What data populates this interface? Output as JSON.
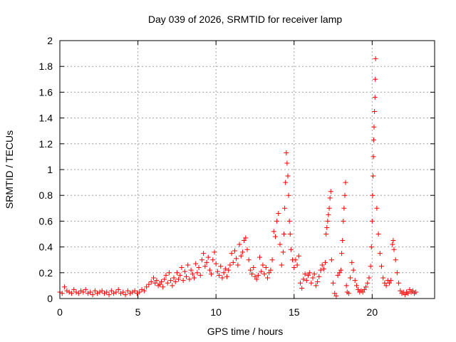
{
  "chart_data": {
    "type": "scatter",
    "title": "Day 039 of 2026, SRMTID for receiver lamp",
    "xlabel": "GPS time / hours",
    "ylabel": "SRMTID / TECUs",
    "xlim": [
      0,
      24
    ],
    "ylim": [
      0,
      2
    ],
    "xticks": [
      0,
      5,
      10,
      15,
      20
    ],
    "yticks": [
      0,
      0.2,
      0.4,
      0.6,
      0.8,
      1,
      1.2,
      1.4,
      1.6,
      1.8,
      2
    ],
    "xtick_labels": [
      "0",
      "5",
      "10",
      "15",
      "20"
    ],
    "ytick_labels": [
      "0",
      "0.2",
      "0.4",
      "0.6",
      "0.8",
      "1",
      "1.2",
      "1.4",
      "1.6",
      "1.8",
      "2"
    ],
    "grid": true,
    "marker": "plus",
    "color": "#ff0000",
    "series": [
      {
        "name": "SRMTID",
        "points": [
          [
            0.0,
            0.05
          ],
          [
            0.15,
            0.04
          ],
          [
            0.3,
            0.09
          ],
          [
            0.45,
            0.06
          ],
          [
            0.6,
            0.05
          ],
          [
            0.75,
            0.04
          ],
          [
            0.9,
            0.07
          ],
          [
            1.05,
            0.05
          ],
          [
            1.2,
            0.04
          ],
          [
            1.35,
            0.06
          ],
          [
            1.5,
            0.05
          ],
          [
            1.65,
            0.07
          ],
          [
            1.8,
            0.04
          ],
          [
            1.95,
            0.05
          ],
          [
            2.1,
            0.03
          ],
          [
            2.25,
            0.06
          ],
          [
            2.4,
            0.04
          ],
          [
            2.55,
            0.05
          ],
          [
            2.7,
            0.06
          ],
          [
            2.85,
            0.04
          ],
          [
            3.0,
            0.05
          ],
          [
            3.15,
            0.03
          ],
          [
            3.3,
            0.06
          ],
          [
            3.45,
            0.04
          ],
          [
            3.6,
            0.05
          ],
          [
            3.75,
            0.07
          ],
          [
            3.9,
            0.04
          ],
          [
            4.05,
            0.05
          ],
          [
            4.2,
            0.03
          ],
          [
            4.35,
            0.06
          ],
          [
            4.5,
            0.04
          ],
          [
            4.65,
            0.05
          ],
          [
            4.8,
            0.06
          ],
          [
            4.95,
            0.04
          ],
          [
            5.1,
            0.05
          ],
          [
            5.25,
            0.07
          ],
          [
            5.4,
            0.06
          ],
          [
            5.55,
            0.09
          ],
          [
            5.7,
            0.11
          ],
          [
            5.85,
            0.13
          ],
          [
            6.0,
            0.16
          ],
          [
            6.1,
            0.12
          ],
          [
            6.2,
            0.14
          ],
          [
            6.3,
            0.1
          ],
          [
            6.4,
            0.11
          ],
          [
            6.5,
            0.13
          ],
          [
            6.6,
            0.09
          ],
          [
            6.7,
            0.15
          ],
          [
            6.8,
            0.18
          ],
          [
            6.9,
            0.12
          ],
          [
            7.0,
            0.2
          ],
          [
            7.1,
            0.14
          ],
          [
            7.2,
            0.1
          ],
          [
            7.3,
            0.16
          ],
          [
            7.4,
            0.13
          ],
          [
            7.5,
            0.2
          ],
          [
            7.6,
            0.15
          ],
          [
            7.7,
            0.18
          ],
          [
            7.8,
            0.24
          ],
          [
            7.9,
            0.14
          ],
          [
            8.0,
            0.21
          ],
          [
            8.1,
            0.17
          ],
          [
            8.2,
            0.26
          ],
          [
            8.3,
            0.15
          ],
          [
            8.4,
            0.22
          ],
          [
            8.5,
            0.19
          ],
          [
            8.6,
            0.16
          ],
          [
            8.7,
            0.27
          ],
          [
            8.8,
            0.2
          ],
          [
            8.9,
            0.24
          ],
          [
            9.0,
            0.18
          ],
          [
            9.1,
            0.3
          ],
          [
            9.2,
            0.35
          ],
          [
            9.3,
            0.25
          ],
          [
            9.4,
            0.28
          ],
          [
            9.5,
            0.32
          ],
          [
            9.6,
            0.22
          ],
          [
            9.7,
            0.19
          ],
          [
            9.8,
            0.3
          ],
          [
            9.9,
            0.36
          ],
          [
            10.0,
            0.27
          ],
          [
            10.1,
            0.21
          ],
          [
            10.2,
            0.18
          ],
          [
            10.3,
            0.25
          ],
          [
            10.4,
            0.16
          ],
          [
            10.5,
            0.2
          ],
          [
            10.6,
            0.23
          ],
          [
            10.7,
            0.17
          ],
          [
            10.8,
            0.22
          ],
          [
            10.9,
            0.26
          ],
          [
            11.0,
            0.35
          ],
          [
            11.1,
            0.28
          ],
          [
            11.2,
            0.37
          ],
          [
            11.3,
            0.31
          ],
          [
            11.4,
            0.26
          ],
          [
            11.5,
            0.42
          ],
          [
            11.6,
            0.33
          ],
          [
            11.7,
            0.36
          ],
          [
            11.8,
            0.45
          ],
          [
            11.9,
            0.47
          ],
          [
            12.0,
            0.38
          ],
          [
            12.1,
            0.3
          ],
          [
            12.2,
            0.22
          ],
          [
            12.3,
            0.19
          ],
          [
            12.4,
            0.24
          ],
          [
            12.5,
            0.17
          ],
          [
            12.6,
            0.15
          ],
          [
            12.7,
            0.18
          ],
          [
            12.8,
            0.32
          ],
          [
            12.9,
            0.21
          ],
          [
            13.0,
            0.26
          ],
          [
            13.1,
            0.19
          ],
          [
            13.2,
            0.24
          ],
          [
            13.3,
            0.16
          ],
          [
            13.4,
            0.2
          ],
          [
            13.5,
            0.22
          ],
          [
            13.6,
            0.3
          ],
          [
            13.7,
            0.52
          ],
          [
            13.8,
            0.48
          ],
          [
            13.9,
            0.6
          ],
          [
            14.0,
            0.66
          ],
          [
            14.1,
            0.42
          ],
          [
            14.2,
            0.26
          ],
          [
            14.3,
            0.36
          ],
          [
            14.35,
            0.5
          ],
          [
            14.4,
            0.7
          ],
          [
            14.45,
            0.9
          ],
          [
            14.5,
            1.13
          ],
          [
            14.55,
            1.05
          ],
          [
            14.6,
            0.95
          ],
          [
            14.65,
            0.8
          ],
          [
            14.7,
            0.6
          ],
          [
            14.75,
            0.5
          ],
          [
            14.8,
            0.38
          ],
          [
            14.9,
            0.3
          ],
          [
            15.0,
            0.24
          ],
          [
            15.1,
            0.3
          ],
          [
            15.2,
            0.26
          ],
          [
            15.3,
            0.33
          ],
          [
            15.4,
            0.12
          ],
          [
            15.5,
            0.08
          ],
          [
            15.6,
            0.15
          ],
          [
            15.7,
            0.19
          ],
          [
            15.8,
            0.14
          ],
          [
            15.9,
            0.18
          ],
          [
            16.0,
            0.2
          ],
          [
            16.1,
            0.12
          ],
          [
            16.2,
            0.16
          ],
          [
            16.3,
            0.19
          ],
          [
            16.4,
            0.1
          ],
          [
            16.5,
            0.13
          ],
          [
            16.6,
            0.17
          ],
          [
            16.7,
            0.22
          ],
          [
            16.8,
            0.26
          ],
          [
            16.9,
            0.23
          ],
          [
            17.0,
            0.28
          ],
          [
            17.05,
            0.5
          ],
          [
            17.1,
            0.55
          ],
          [
            17.15,
            0.6
          ],
          [
            17.2,
            0.65
          ],
          [
            17.25,
            0.7
          ],
          [
            17.3,
            0.78
          ],
          [
            17.35,
            0.83
          ],
          [
            17.4,
            0.3
          ],
          [
            17.5,
            0.12
          ],
          [
            17.6,
            0.04
          ],
          [
            17.7,
            0.02
          ],
          [
            17.8,
            0.18
          ],
          [
            17.9,
            0.2
          ],
          [
            18.0,
            0.22
          ],
          [
            18.05,
            0.35
          ],
          [
            18.1,
            0.45
          ],
          [
            18.15,
            0.6
          ],
          [
            18.2,
            0.7
          ],
          [
            18.25,
            0.8
          ],
          [
            18.3,
            0.9
          ],
          [
            18.35,
            0.1
          ],
          [
            18.4,
            0.05
          ],
          [
            18.5,
            0.04
          ],
          [
            18.6,
            0.16
          ],
          [
            18.7,
            0.28
          ],
          [
            18.8,
            0.22
          ],
          [
            18.9,
            0.14
          ],
          [
            19.0,
            0.1
          ],
          [
            19.1,
            0.07
          ],
          [
            19.2,
            0.05
          ],
          [
            19.3,
            0.06
          ],
          [
            19.4,
            0.05
          ],
          [
            19.5,
            0.07
          ],
          [
            19.6,
            0.09
          ],
          [
            19.7,
            0.12
          ],
          [
            19.8,
            0.16
          ],
          [
            19.9,
            0.25
          ],
          [
            19.95,
            0.4
          ],
          [
            20.0,
            0.6
          ],
          [
            20.03,
            0.8
          ],
          [
            20.06,
            0.95
          ],
          [
            20.08,
            1.1
          ],
          [
            20.1,
            1.23
          ],
          [
            20.12,
            1.33
          ],
          [
            20.15,
            1.45
          ],
          [
            20.18,
            1.56
          ],
          [
            20.2,
            1.7
          ],
          [
            20.22,
            1.86
          ],
          [
            20.3,
            0.7
          ],
          [
            20.4,
            0.5
          ],
          [
            20.5,
            0.35
          ],
          [
            20.6,
            0.25
          ],
          [
            20.7,
            0.16
          ],
          [
            20.8,
            0.12
          ],
          [
            20.9,
            0.1
          ],
          [
            21.0,
            0.14
          ],
          [
            21.1,
            0.12
          ],
          [
            21.2,
            0.14
          ],
          [
            21.3,
            0.42
          ],
          [
            21.35,
            0.45
          ],
          [
            21.4,
            0.38
          ],
          [
            21.5,
            0.3
          ],
          [
            21.6,
            0.2
          ],
          [
            21.7,
            0.12
          ],
          [
            21.8,
            0.06
          ],
          [
            21.9,
            0.04
          ],
          [
            22.0,
            0.05
          ],
          [
            22.1,
            0.03
          ],
          [
            22.2,
            0.05
          ],
          [
            22.3,
            0.04
          ],
          [
            22.4,
            0.07
          ],
          [
            22.5,
            0.05
          ],
          [
            22.6,
            0.06
          ],
          [
            22.7,
            0.04
          ],
          [
            22.8,
            0.05
          ]
        ]
      }
    ]
  }
}
